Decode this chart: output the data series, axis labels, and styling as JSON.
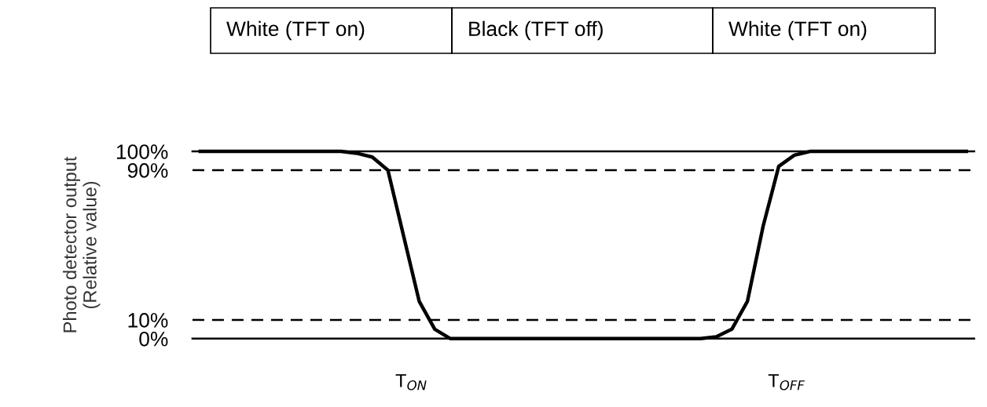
{
  "chart_data": {
    "type": "line",
    "ylabel": "Photo detector output\n(Relative value)",
    "categories": [
      null,
      null,
      null,
      null,
      null,
      null,
      null,
      null,
      null,
      null,
      null,
      null,
      null,
      null,
      null,
      null,
      null,
      null,
      null,
      null,
      null,
      null,
      null,
      null,
      null,
      null,
      null,
      null,
      null,
      null,
      null,
      null,
      null,
      null,
      null,
      null,
      null,
      null,
      null,
      null,
      null,
      null,
      null,
      null,
      null,
      null,
      null,
      null,
      null,
      null
    ],
    "series": [
      {
        "color": "#000000",
        "values": [
          100,
          100,
          100,
          100,
          100,
          100,
          100,
          100,
          100,
          100,
          99,
          97,
          90,
          55,
          20,
          5,
          0,
          0,
          0,
          0,
          0,
          0,
          0,
          0,
          0,
          0,
          0,
          0,
          0,
          0,
          0,
          0,
          0,
          1,
          5,
          20,
          60,
          92,
          98,
          100,
          100,
          100,
          100,
          100,
          100,
          100,
          100,
          100,
          100,
          100
        ]
      }
    ],
    "ylim": [
      0,
      100
    ],
    "yticks": [
      {
        "value": 0,
        "label": "0%"
      },
      {
        "value": 10,
        "label": "10%"
      },
      {
        "value": 90,
        "label": "90%"
      },
      {
        "value": 100,
        "label": "100%"
      }
    ],
    "ref_lines": [
      {
        "axis": "y",
        "value": 100,
        "color": "#000000",
        "line_style": "solid"
      },
      {
        "axis": "y",
        "value": 90,
        "color": "#000000",
        "line_style": "dashed"
      },
      {
        "axis": "y",
        "value": 10,
        "color": "#000000",
        "line_style": "dashed"
      },
      {
        "axis": "y",
        "value": 0,
        "color": "#000000",
        "line_style": "solid"
      }
    ],
    "annotations": [
      "White (TFT on)",
      "Black (TFT off)",
      "White (TFT on)",
      "T$_{ON}$",
      "T$_{OFF}$"
    ],
    "grid": false,
    "legend": false,
    "marker": "none",
    "line_style": "solid"
  }
}
